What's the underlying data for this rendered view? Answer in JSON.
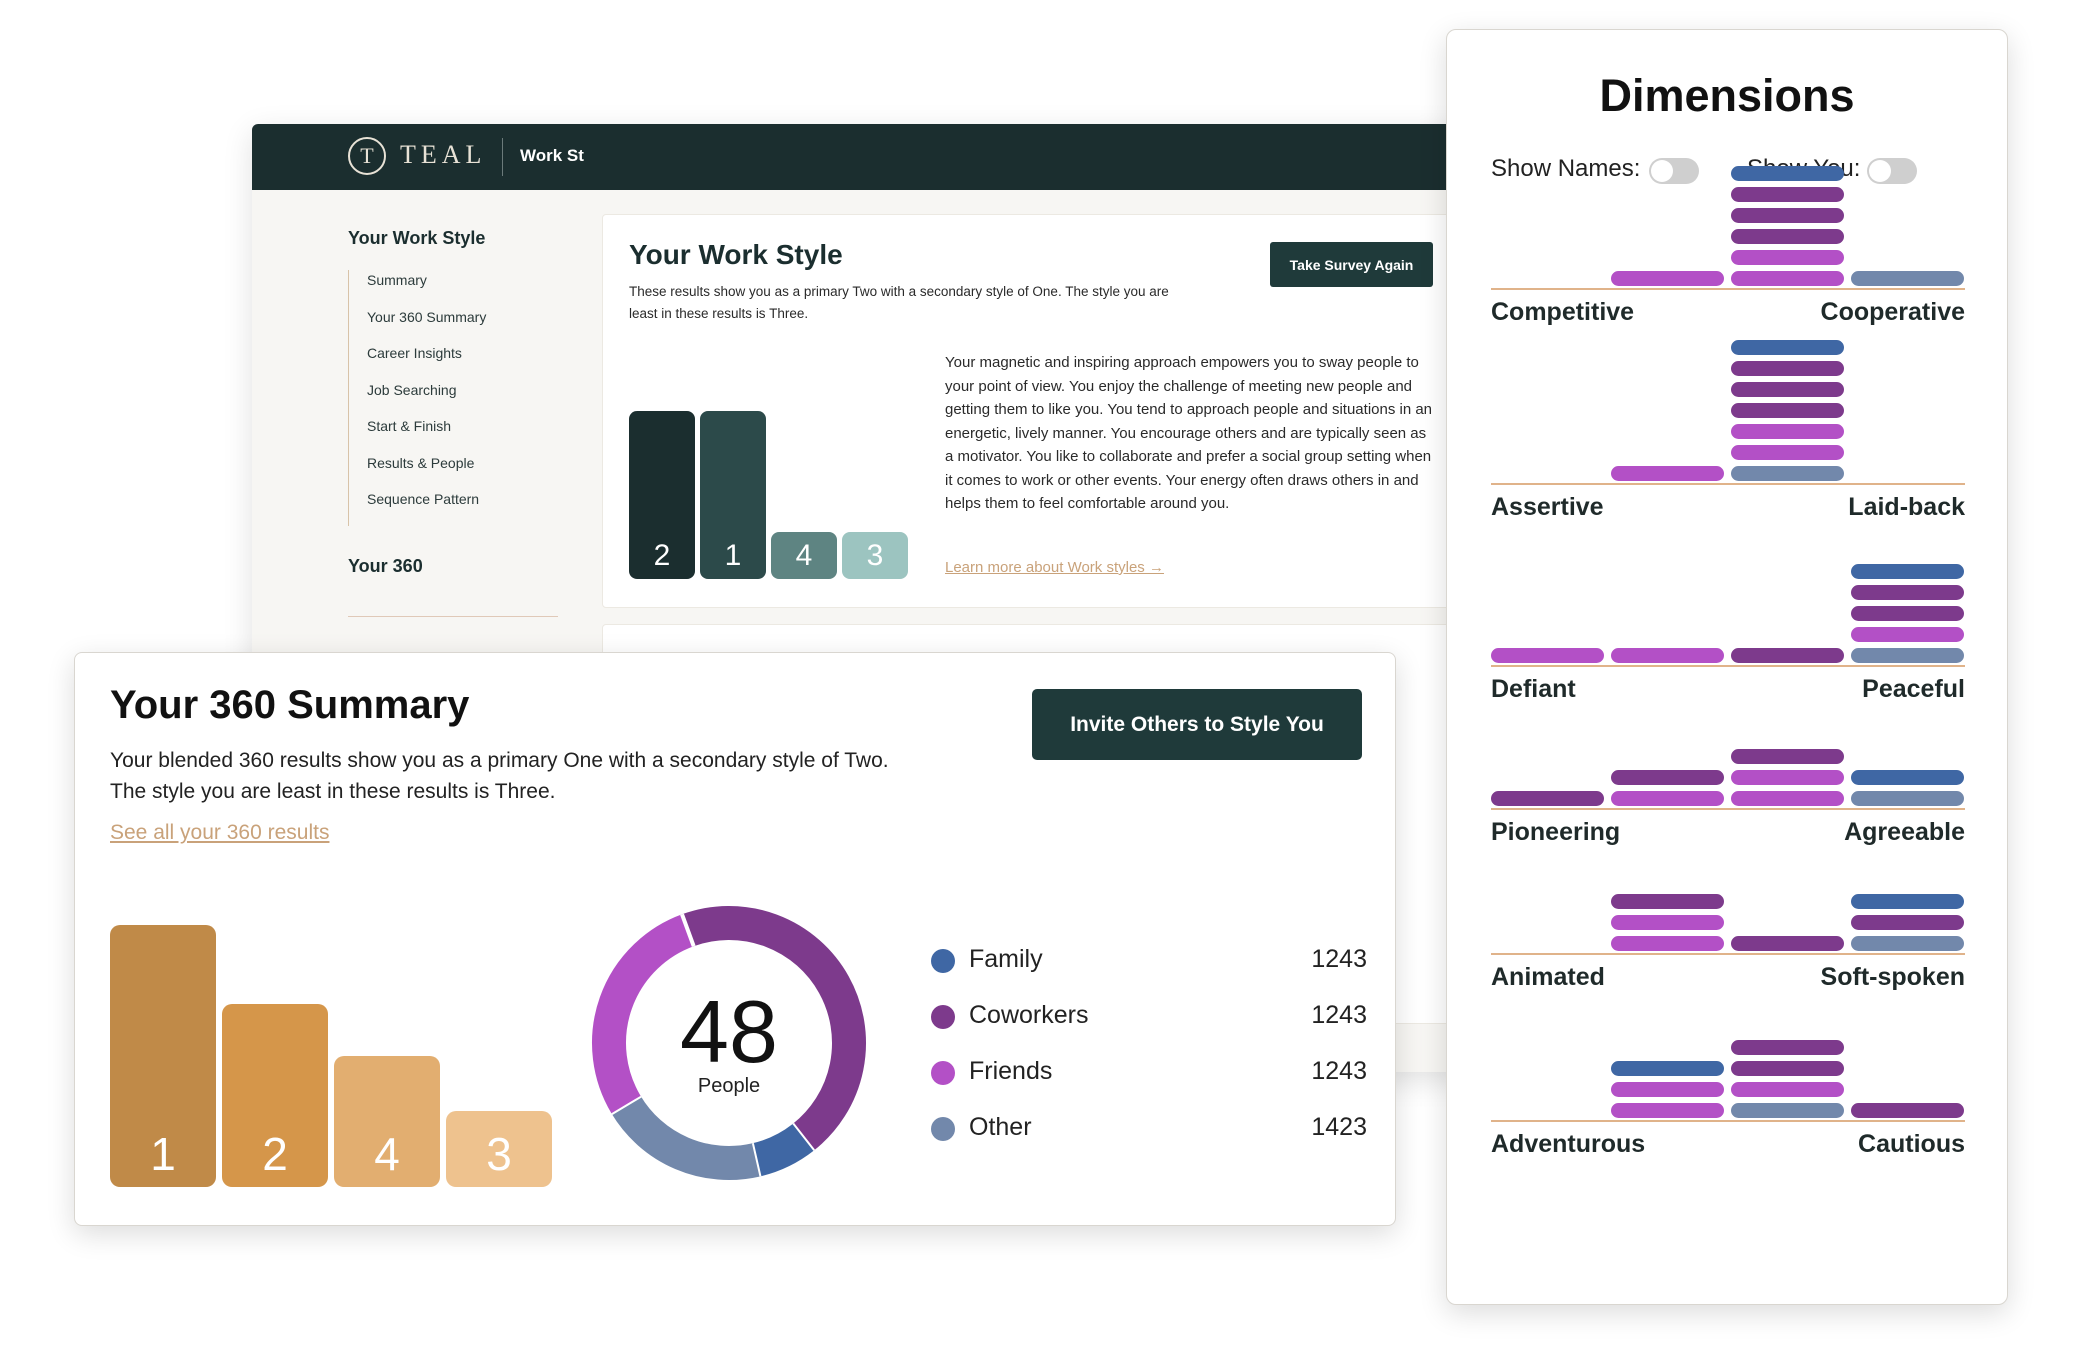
{
  "app": {
    "logo_mark": "T",
    "logo_text": "TEAL",
    "nav_item": "Work St"
  },
  "sidebar": {
    "section_title": "Your Work Style",
    "items": [
      "Summary",
      "Your 360 Summary",
      "Career Insights",
      "Job Searching",
      "Start & Finish",
      "Results & People",
      "Sequence Pattern"
    ],
    "section_title_2": "Your 360"
  },
  "work_style": {
    "title": "Your Work Style",
    "description": "These results show you as a primary Two with a secondary style of One. The style you are least in these results is Three.",
    "button": "Take Survey Again",
    "body": "Your magnetic and inspiring approach empowers you to sway people to your point of view. You enjoy the challenge of meeting new people and getting them to like you. You tend to approach people and situations in an energetic, lively manner. You encourage others and are typically seen as a motivator. You like to collaborate and prefer a social group setting when it comes to work or other events. Your energy often draws others in and helps them to feel comfortable around you.",
    "learn_more": "Learn more about Work styles →",
    "bars": [
      {
        "label": "2",
        "level": 1.0,
        "color": "#1b2e2f"
      },
      {
        "label": "1",
        "level": 1.0,
        "color": "#2c4a4a"
      },
      {
        "label": "4",
        "level": 0.28,
        "color": "#5e8482"
      },
      {
        "label": "3",
        "level": 0.28,
        "color": "#9cc4c0"
      }
    ]
  },
  "summary": {
    "title": "Your 360 Summary",
    "description": "Your blended 360 results show you as a primary One with a secondary style of Two. The style you are least in these results is Three.",
    "link": "See all your 360 results",
    "button": "Invite Others to Style You",
    "bars": [
      {
        "label": "1",
        "level": 1.0,
        "color": "#c08a48"
      },
      {
        "label": "2",
        "level": 0.7,
        "color": "#d5964a"
      },
      {
        "label": "4",
        "level": 0.5,
        "color": "#e2ae70"
      },
      {
        "label": "3",
        "level": 0.29,
        "color": "#eec28e"
      }
    ],
    "donut": {
      "value": "48",
      "label": "People",
      "segments": [
        {
          "name": "Coworkers",
          "fraction": 0.45,
          "color": "#7d3a8c"
        },
        {
          "name": "Family",
          "fraction": 0.07,
          "color": "#3f67a4"
        },
        {
          "name": "Other",
          "fraction": 0.2,
          "color": "#7288ab"
        },
        {
          "name": "Friends",
          "fraction": 0.28,
          "color": "#b350c6"
        }
      ]
    },
    "legend": [
      {
        "name": "Family",
        "count": "1243",
        "color": "#3f67a4"
      },
      {
        "name": "Coworkers",
        "count": "1243",
        "color": "#7d3a8c"
      },
      {
        "name": "Friends",
        "count": "1243",
        "color": "#b350c6"
      },
      {
        "name": "Other",
        "count": "1423",
        "color": "#7288ab"
      }
    ]
  },
  "dimensions": {
    "title": "Dimensions",
    "show_names_label": "Show Names:",
    "show_you_label": "Show You:",
    "show_names_on": false,
    "show_you_on": false,
    "colors": {
      "C": "#7d3a8c",
      "F": "#b350c6",
      "B": "#3f67a4",
      "G": "#7288ab"
    },
    "rows": [
      {
        "left": "Competitive",
        "right": "Cooperative",
        "stacks": [
          "",
          "F",
          "FFCCCB",
          "G"
        ]
      },
      {
        "left": "Assertive",
        "right": "Laid-back",
        "stacks": [
          "",
          "F",
          "GFFCCCB",
          ""
        ]
      },
      {
        "left": "Defiant",
        "right": "Peaceful",
        "stacks": [
          "F",
          "F",
          "C",
          "GFCCB"
        ]
      },
      {
        "left": "Pioneering",
        "right": "Agreeable",
        "stacks": [
          "C",
          "FC",
          "FFC",
          "GB"
        ]
      },
      {
        "left": "Animated",
        "right": "Soft-spoken",
        "stacks": [
          "",
          "FFC",
          "C",
          "GCB"
        ]
      },
      {
        "left": "Adventurous",
        "right": "Cautious",
        "stacks": [
          "",
          "FFB",
          "GFCC",
          "C"
        ]
      }
    ]
  }
}
